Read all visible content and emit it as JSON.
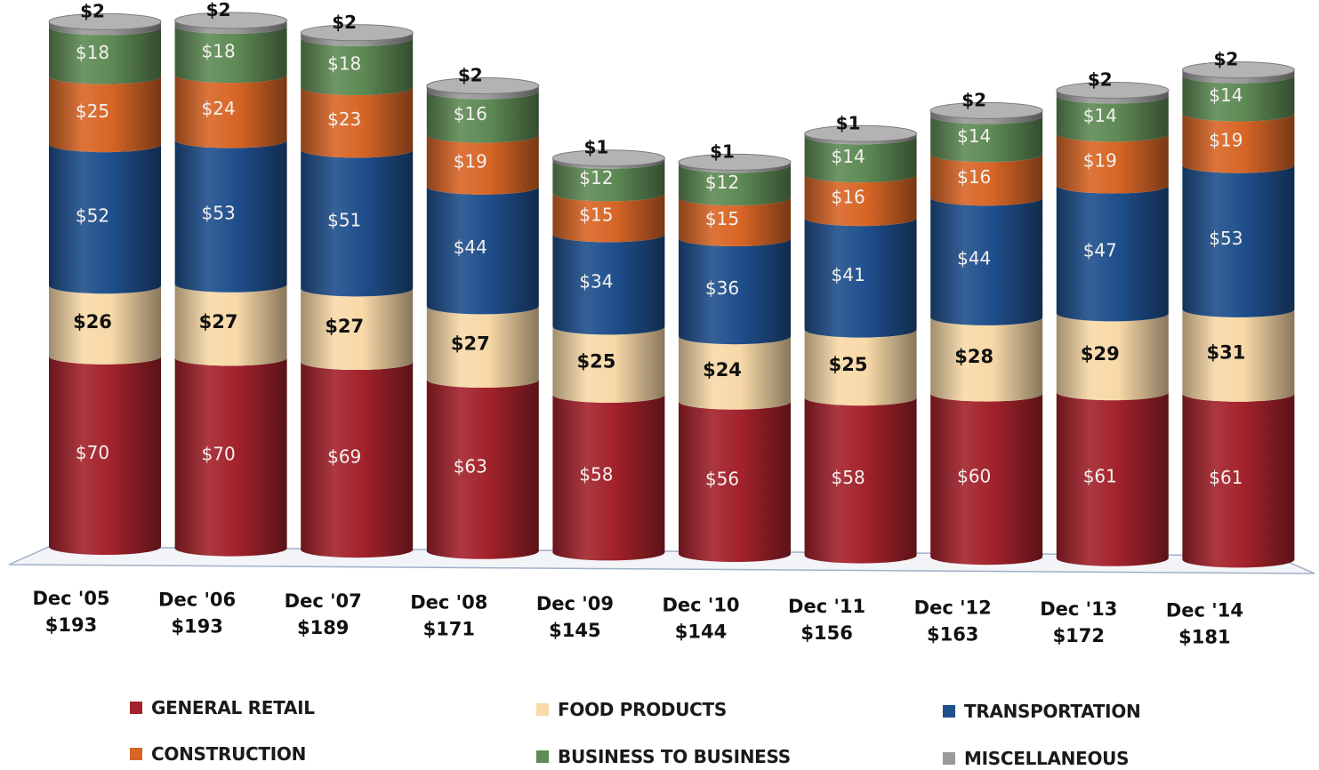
{
  "chart_data": {
    "type": "bar",
    "stacked": true,
    "categories": [
      "Dec '05",
      "Dec '06",
      "Dec '07",
      "Dec '08",
      "Dec '09",
      "Dec '10",
      "Dec '11",
      "Dec '12",
      "Dec '13",
      "Dec '14"
    ],
    "totals": [
      "$193",
      "$193",
      "$189",
      "$171",
      "$145",
      "$144",
      "$156",
      "$163",
      "$172",
      "$181"
    ],
    "value_prefix": "$",
    "series": [
      {
        "name": "GENERAL RETAIL",
        "color": "#a3222b",
        "label_style": "light",
        "values": [
          70,
          70,
          69,
          63,
          58,
          56,
          58,
          60,
          61,
          61
        ]
      },
      {
        "name": "FOOD PRODUCTS",
        "color": "#f8d9a8",
        "label_style": "dark",
        "values": [
          26,
          27,
          27,
          27,
          25,
          24,
          25,
          28,
          29,
          31
        ]
      },
      {
        "name": "TRANSPORTATION",
        "color": "#1f4f8c",
        "label_style": "light",
        "values": [
          52,
          53,
          51,
          44,
          34,
          36,
          41,
          44,
          47,
          53
        ]
      },
      {
        "name": "CONSTRUCTION",
        "color": "#d86626",
        "label_style": "light",
        "values": [
          25,
          24,
          23,
          19,
          15,
          15,
          16,
          16,
          19,
          19
        ]
      },
      {
        "name": "BUSINESS TO BUSINESS",
        "color": "#5e8a55",
        "label_style": "light",
        "values": [
          18,
          18,
          18,
          16,
          12,
          12,
          14,
          14,
          14,
          14
        ]
      },
      {
        "name": "MISCELLANEOUS",
        "color": "#9a9a9a",
        "label_style": "top",
        "values": [
          2,
          2,
          2,
          2,
          1,
          1,
          1,
          2,
          2,
          2
        ]
      }
    ],
    "legend_position": "bottom",
    "grid": false
  }
}
